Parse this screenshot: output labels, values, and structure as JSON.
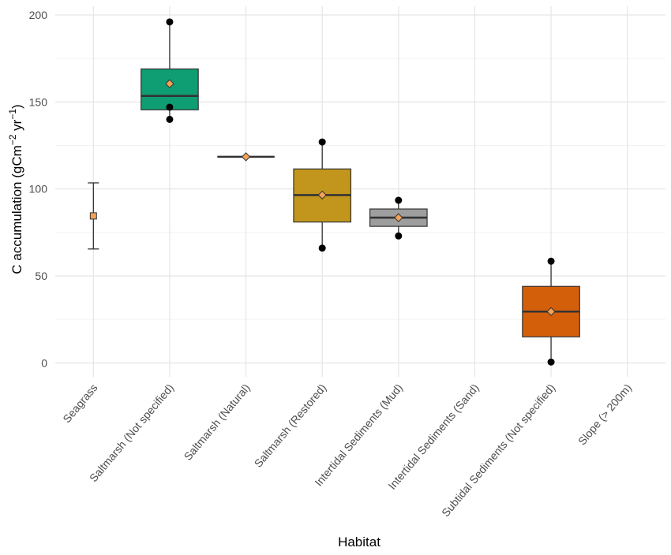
{
  "chart_data": {
    "type": "box",
    "xlabel": "Habitat",
    "ylabel": "C accumulation (gCm",
    "ylabel_unit_sup1": "−2",
    "ylabel_unit_mid": " yr",
    "ylabel_unit_sup2": "−1",
    "ylabel_close": ")",
    "ylim": [
      -8,
      205
    ],
    "y_ticks": [
      0,
      50,
      100,
      150,
      200
    ],
    "grid": true,
    "categories": [
      "Seagrass",
      "Saltmarsh (Not specified)",
      "Saltmarsh (Natural)",
      "Saltmarsh (Restored)",
      "Intertidal Sediments (Mud)",
      "Intertidal Sediments (Sand)",
      "Subtidal Sediments (Not specified)",
      "Slope (> 200m)"
    ],
    "boxes": [
      {
        "category": "Seagrass",
        "kind": "errorbar",
        "mean": 84.5,
        "low": 65.5,
        "high": 103.5,
        "fill": "#f4a259"
      },
      {
        "category": "Saltmarsh (Not specified)",
        "kind": "box",
        "q1": 145.5,
        "median": 153.5,
        "q3": 169,
        "whisker_low": 140,
        "whisker_high": 196,
        "mean": 160.5,
        "points": [
          196,
          147,
          140
        ],
        "fill": "#0f9d74"
      },
      {
        "category": "Saltmarsh (Natural)",
        "kind": "box",
        "q1": 118.5,
        "median": 118.5,
        "q3": 118.5,
        "whisker_low": 118.5,
        "whisker_high": 118.5,
        "mean": 118.5,
        "points": [],
        "fill": "#555555"
      },
      {
        "category": "Saltmarsh (Restored)",
        "kind": "box",
        "q1": 81,
        "median": 96.5,
        "q3": 111.5,
        "whisker_low": 66,
        "whisker_high": 127,
        "mean": 96.5,
        "points": [
          127,
          66
        ],
        "fill": "#c2961c"
      },
      {
        "category": "Intertidal Sediments (Mud)",
        "kind": "box",
        "q1": 78.5,
        "median": 83.5,
        "q3": 88.5,
        "whisker_low": 73,
        "whisker_high": 93.5,
        "mean": 83.5,
        "points": [
          93.5,
          73
        ],
        "fill": "#9e9e9e"
      },
      {
        "category": "Subtidal Sediments (Not specified)",
        "kind": "box",
        "q1": 15,
        "median": 29.5,
        "q3": 44,
        "whisker_low": 0.5,
        "whisker_high": 58.5,
        "mean": 29.5,
        "points": [
          58.5,
          0.5
        ],
        "fill": "#d35f0a"
      }
    ],
    "mean_marker_color": "#f4a259"
  }
}
